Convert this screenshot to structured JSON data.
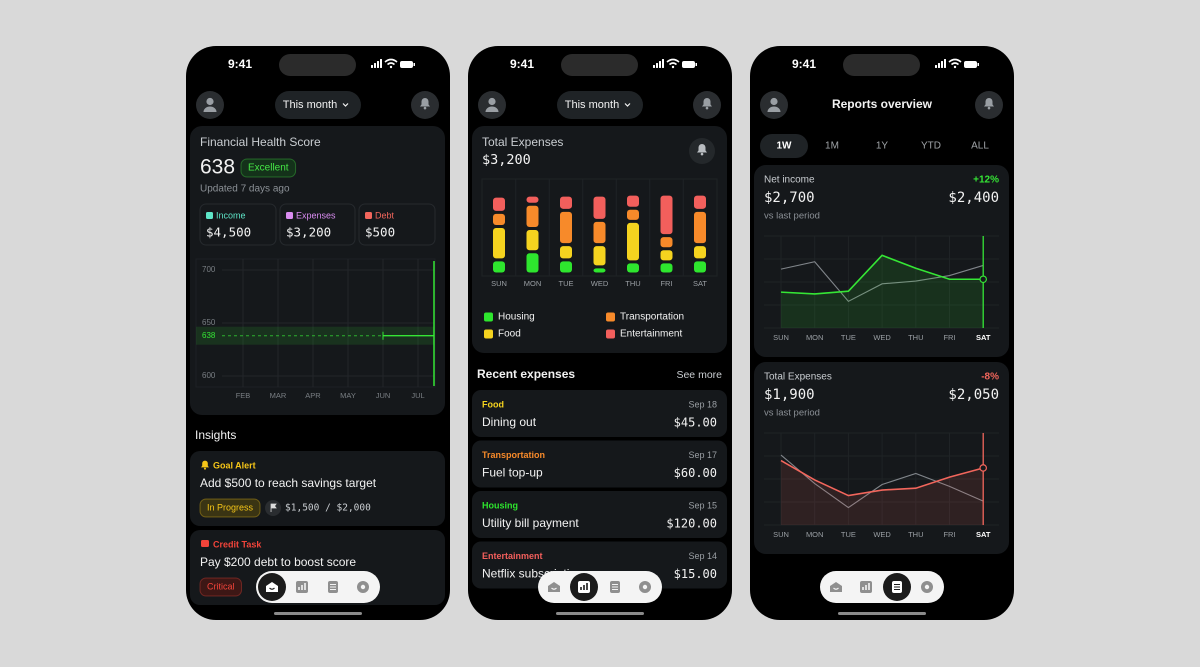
{
  "status_time": "9:41",
  "dashboard": {
    "period": "This month",
    "health": {
      "title": "Financial Health Score",
      "score": 638,
      "badge": "Excellent",
      "updated": "Updated 7 days ago",
      "stats": [
        {
          "label": "Income",
          "value": "$4,500",
          "color": "#5ee6c8"
        },
        {
          "label": "Expenses",
          "value": "$3,200",
          "color": "#d98cf0"
        },
        {
          "label": "Debt",
          "value": "$500",
          "color": "#f2665c"
        }
      ],
      "chart": {
        "type": "line",
        "categories": [
          "FEB",
          "MAR",
          "APR",
          "MAY",
          "JUN",
          "JUL"
        ],
        "ylim": [
          600,
          700
        ],
        "yticks": [
          600,
          650,
          700
        ],
        "color": "#35e635"
      }
    },
    "insights_title": "Insights",
    "insights": [
      {
        "kind": "Goal Alert",
        "color": "#f5c518",
        "text": "Add $500 to reach savings target",
        "status": "In Progress",
        "progress": "$1,500 / $2,000"
      },
      {
        "kind": "Credit Task",
        "color": "#f2443a",
        "text": "Pay $200 debt to boost score",
        "status": "Critical"
      }
    ]
  },
  "expenses": {
    "period": "This month",
    "title": "Total Expenses",
    "total": "$3,200",
    "chart": {
      "type": "stacked_bar",
      "categories": [
        "SUN",
        "MON",
        "TUE",
        "WED",
        "THU",
        "FRI",
        "SAT"
      ],
      "ylim": [
        0,
        92
      ],
      "series": [
        {
          "name": "Housing",
          "color": "#2ee62e",
          "values": [
            14,
            22,
            14,
            7,
            12,
            12,
            14
          ]
        },
        {
          "name": "Food",
          "color": "#f5d31f",
          "values": [
            33,
            23,
            15,
            22,
            40,
            13,
            15
          ]
        },
        {
          "name": "Transportation",
          "color": "#f78a2a",
          "values": [
            14,
            24,
            34,
            24,
            13,
            13,
            34
          ]
        },
        {
          "name": "Entertainment",
          "color": "#f25f5c",
          "values": [
            16,
            9,
            15,
            25,
            14,
            41,
            16
          ]
        }
      ]
    },
    "recent_title": "Recent expenses",
    "see_more": "See more",
    "items": [
      {
        "category": "Food",
        "date": "Sep 18",
        "title": "Dining out",
        "amount": "$45.00"
      },
      {
        "category": "Transportation",
        "date": "Sep 17",
        "title": "Fuel top-up",
        "amount": "$60.00"
      },
      {
        "category": "Housing",
        "date": "Sep 15",
        "title": "Utility bill payment",
        "amount": "$120.00"
      },
      {
        "category": "Entertainment",
        "date": "Sep 14",
        "title": "Netflix subscription",
        "amount": "$15.00"
      }
    ]
  },
  "reports": {
    "title": "Reports overview",
    "ranges": [
      "1W",
      "1M",
      "1Y",
      "YTD",
      "ALL"
    ],
    "active_range": "1W",
    "cards": [
      {
        "title": "Net income",
        "change": "+12%",
        "current": "$2,700",
        "previous": "$2,400",
        "note": "vs last period",
        "color": "#35e635",
        "chart": {
          "type": "line",
          "categories": [
            "SUN",
            "MON",
            "TUE",
            "WED",
            "THU",
            "FRI",
            "SAT"
          ],
          "ylim": [
            0,
            100
          ],
          "series": [
            {
              "color": "#35e635",
              "values": [
                39,
                37,
                40,
                79,
                65,
                53,
                53
              ]
            },
            {
              "color": "#80858a",
              "values": [
                64,
                72,
                29,
                48,
                51,
                57,
                68
              ]
            }
          ]
        }
      },
      {
        "title": "Total Expenses",
        "change": "-8%",
        "current": "$1,900",
        "previous": "$2,050",
        "note": "vs last period",
        "color": "#f2665c",
        "chart": {
          "type": "line",
          "categories": [
            "SUN",
            "MON",
            "TUE",
            "WED",
            "THU",
            "FRI",
            "SAT"
          ],
          "ylim": [
            0,
            100
          ],
          "series": [
            {
              "color": "#f2665c",
              "values": [
                70,
                49,
                32,
                38,
                40,
                52,
                62
              ]
            },
            {
              "color": "#80858a",
              "values": [
                76,
                45,
                19,
                44,
                56,
                42,
                26
              ]
            }
          ]
        }
      }
    ]
  }
}
